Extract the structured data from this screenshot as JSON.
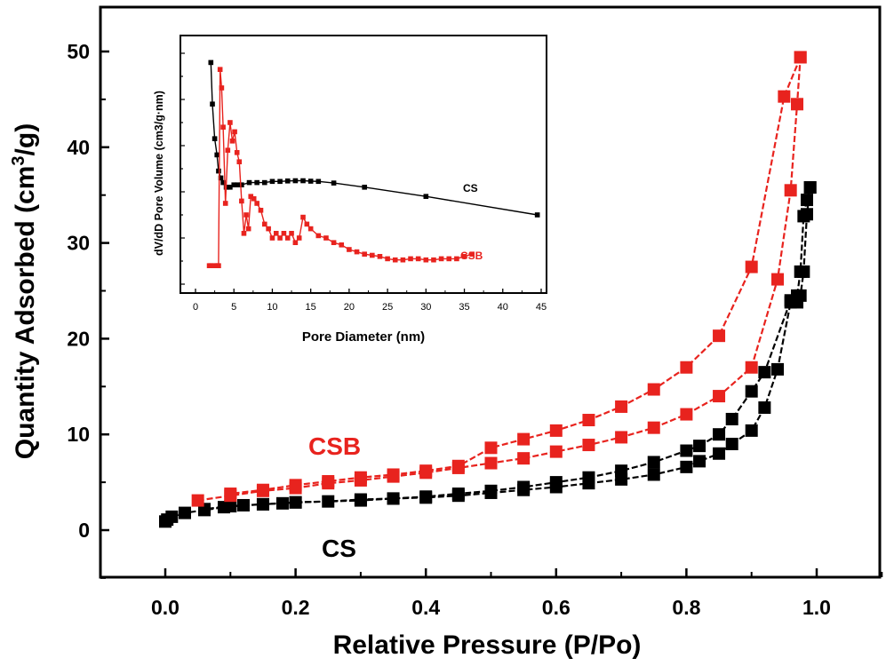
{
  "colors": {
    "cs": "#000000",
    "csb": "#e8231e",
    "axis": "#000000",
    "background": "#ffffff"
  },
  "chart_data": [
    {
      "id": "main",
      "type": "line",
      "title": "",
      "xlabel": "Relative Pressure (P/Po)",
      "ylabel_main": "Quantity Adsorbed (cm",
      "ylabel_sup": "3",
      "ylabel_tail": "/g)",
      "xlim": [
        -0.1,
        1.1
      ],
      "ylim": [
        -5,
        55
      ],
      "xticks": [
        0.0,
        0.2,
        0.4,
        0.6,
        0.8,
        1.0
      ],
      "xtick_labels": [
        "0.0",
        "0.2",
        "0.4",
        "0.6",
        "0.8",
        "1.0"
      ],
      "yticks": [
        0,
        10,
        20,
        30,
        40,
        50
      ],
      "ytick_labels": [
        "0",
        "10",
        "20",
        "30",
        "40",
        "50"
      ],
      "series": [
        {
          "name": "CS adsorption",
          "label": "CS",
          "color": "#000000",
          "x": [
            0.0,
            0.003,
            0.01,
            0.03,
            0.06,
            0.09,
            0.12,
            0.15,
            0.18,
            0.2,
            0.3,
            0.35,
            0.4,
            0.45,
            0.5,
            0.55,
            0.6,
            0.65,
            0.7,
            0.75,
            0.8,
            0.82,
            0.85,
            0.87,
            0.9,
            0.92,
            0.94,
            0.96,
            0.97,
            0.975,
            0.98,
            0.985,
            0.99
          ],
          "y": [
            0.9,
            1.1,
            1.4,
            1.8,
            2.1,
            2.4,
            2.6,
            2.7,
            2.8,
            2.9,
            3.1,
            3.3,
            3.4,
            3.6,
            3.9,
            4.2,
            4.5,
            4.9,
            5.3,
            5.8,
            6.6,
            7.2,
            8.0,
            9.0,
            10.4,
            12.8,
            16.8,
            23.8,
            24.5,
            27.0,
            32.8,
            34.5,
            35.8
          ]
        },
        {
          "name": "CS desorption",
          "label": "CS",
          "color": "#000000",
          "x": [
            0.99,
            0.985,
            0.98,
            0.975,
            0.97,
            0.96,
            0.92,
            0.9,
            0.87,
            0.85,
            0.82,
            0.8,
            0.75,
            0.7,
            0.65,
            0.6,
            0.55,
            0.5,
            0.45,
            0.4,
            0.35,
            0.3,
            0.25,
            0.2,
            0.15,
            0.1,
            0.06
          ],
          "y": [
            35.8,
            33.0,
            27.0,
            24.5,
            23.8,
            24.0,
            16.5,
            14.5,
            11.6,
            10.0,
            8.8,
            8.3,
            7.1,
            6.2,
            5.5,
            5.0,
            4.5,
            4.1,
            3.8,
            3.5,
            3.3,
            3.2,
            3.0,
            2.9,
            2.7,
            2.5,
            2.2
          ]
        },
        {
          "name": "CSB adsorption",
          "label": "CSB",
          "color": "#e8231e",
          "x": [
            0.05,
            0.1,
            0.15,
            0.2,
            0.25,
            0.3,
            0.35,
            0.4,
            0.45,
            0.5,
            0.55,
            0.6,
            0.65,
            0.7,
            0.75,
            0.8,
            0.85,
            0.9,
            0.94,
            0.96,
            0.97,
            0.975
          ],
          "y": [
            3.1,
            3.6,
            4.1,
            4.4,
            4.9,
            5.2,
            5.6,
            6.0,
            6.5,
            7.0,
            7.5,
            8.2,
            8.9,
            9.7,
            10.7,
            12.1,
            14.0,
            17.0,
            26.2,
            35.5,
            44.5,
            49.4
          ]
        },
        {
          "name": "CSB desorption",
          "label": "CSB",
          "color": "#e8231e",
          "x": [
            0.975,
            0.95,
            0.9,
            0.85,
            0.8,
            0.75,
            0.7,
            0.65,
            0.6,
            0.55,
            0.5,
            0.45,
            0.4,
            0.35,
            0.3,
            0.25,
            0.2,
            0.15,
            0.1
          ],
          "y": [
            49.4,
            45.3,
            27.5,
            20.3,
            17.0,
            14.7,
            12.9,
            11.5,
            10.4,
            9.5,
            8.6,
            6.7,
            6.2,
            5.8,
            5.5,
            5.1,
            4.7,
            4.2,
            3.8
          ]
        }
      ],
      "annotations": [
        {
          "text": "CSB",
          "color": "#e8231e",
          "x": 0.26,
          "y": 9.2
        },
        {
          "text": "CS",
          "color": "#000000",
          "x": 0.27,
          "y": -1.8
        }
      ]
    },
    {
      "id": "inset",
      "type": "line",
      "xlabel": "Pore Diameter (nm)",
      "ylabel": "dV/dD Pore Volume (cm3/g·nm)",
      "xlim": [
        -2,
        45
      ],
      "ylim": [
        0,
        100
      ],
      "xticks": [
        0,
        5,
        10,
        15,
        20,
        25,
        30,
        35,
        40,
        45
      ],
      "xtick_labels": [
        "0",
        "5",
        "10",
        "15",
        "20",
        "25",
        "30",
        "35",
        "40",
        "45"
      ],
      "series": [
        {
          "name": "CS",
          "label": "CS",
          "color": "#000000",
          "x": [
            2.0,
            2.2,
            2.5,
            2.8,
            3.0,
            3.3,
            3.6,
            4.0,
            4.5,
            5.0,
            5.5,
            6.0,
            7.0,
            8.0,
            9.0,
            10.0,
            11.0,
            12.0,
            13.0,
            14.0,
            15.0,
            16.0,
            18.0,
            22.0,
            30.0,
            44.5
          ],
          "y": [
            96,
            78,
            63,
            56,
            49,
            46,
            44,
            42,
            42,
            43,
            43,
            43,
            44,
            44,
            44,
            44.5,
            44.5,
            44.7,
            44.8,
            44.8,
            44.6,
            44.5,
            43.8,
            42.0,
            38.0,
            30.0
          ]
        },
        {
          "name": "CSB",
          "label": "CSB",
          "color": "#e8231e",
          "x": [
            1.8,
            2.0,
            2.5,
            2.8,
            3.0,
            3.2,
            3.4,
            3.6,
            3.9,
            4.2,
            4.5,
            4.8,
            5.1,
            5.4,
            5.7,
            6.0,
            6.3,
            6.6,
            6.9,
            7.2,
            7.6,
            8.0,
            8.5,
            9.0,
            9.5,
            10.0,
            10.5,
            11.0,
            11.5,
            12.0,
            12.5,
            13.0,
            13.5,
            14.0,
            14.5,
            15.0,
            16.0,
            17.0,
            18.0,
            19.0,
            20.0,
            21.0,
            22.0,
            23.0,
            24.0,
            25.0,
            26.0,
            27.0,
            28.0,
            29.0,
            30.0,
            31.0,
            32.0,
            33.0,
            34.0,
            35.0,
            36.0
          ],
          "y": [
            8,
            8,
            8,
            8,
            8,
            93,
            85,
            68,
            35,
            58,
            70,
            62,
            66,
            57,
            53,
            36,
            22,
            30,
            24,
            38,
            37,
            35,
            32,
            26,
            24,
            20,
            22,
            20,
            22,
            20,
            22,
            18,
            20,
            29,
            26,
            24,
            21,
            20,
            18,
            17,
            15,
            14,
            13,
            12.5,
            12,
            11,
            10.5,
            10.5,
            11,
            11,
            10.5,
            10.5,
            11,
            11,
            11,
            12,
            13
          ]
        }
      ],
      "annotations": [
        {
          "text": "CS",
          "color": "#000000",
          "x": 36.2,
          "y": 46
        },
        {
          "text": "CSB",
          "color": "#e8231e",
          "x": 36.2,
          "y": 17
        }
      ]
    }
  ]
}
